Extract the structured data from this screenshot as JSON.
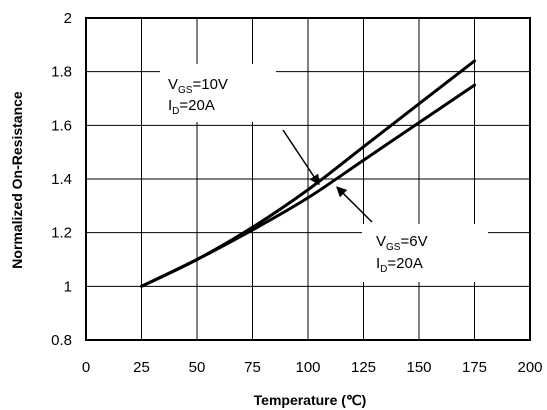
{
  "chart_data": {
    "type": "line",
    "title": "",
    "xlabel": "Temperature (℃)",
    "ylabel": "Normalized On-Resistance",
    "xlim": [
      0,
      200
    ],
    "ylim": [
      0.8,
      2
    ],
    "x_ticks": [
      "0",
      "25",
      "50",
      "75",
      "100",
      "125",
      "150",
      "175",
      "200"
    ],
    "y_ticks": [
      "0.8",
      "1",
      "1.2",
      "1.4",
      "1.6",
      "1.8",
      "2"
    ],
    "grid": true,
    "series": [
      {
        "name": "VGS=10V, ID=20A",
        "x": [
          25,
          50,
          75,
          100,
          125,
          150,
          175
        ],
        "y": [
          1.0,
          1.1,
          1.22,
          1.36,
          1.52,
          1.68,
          1.84
        ]
      },
      {
        "name": "VGS=6V, ID=20A",
        "x": [
          25,
          50,
          75,
          100,
          125,
          150,
          175
        ],
        "y": [
          1.0,
          1.1,
          1.21,
          1.33,
          1.47,
          1.61,
          1.75
        ]
      }
    ],
    "annotations": [
      {
        "series": 0,
        "line1_main": "V",
        "line1_sub": "GS",
        "line1_rest": "=10V",
        "line2_main": "I",
        "line2_sub": "D",
        "line2_rest": "=20A",
        "arrow_to": [
          105,
          1.38
        ]
      },
      {
        "series": 1,
        "line1_main": "V",
        "line1_sub": "GS",
        "line1_rest": "=6V",
        "line2_main": "I",
        "line2_sub": "D",
        "line2_rest": "=20A",
        "arrow_to": [
          113,
          1.37
        ]
      }
    ]
  }
}
